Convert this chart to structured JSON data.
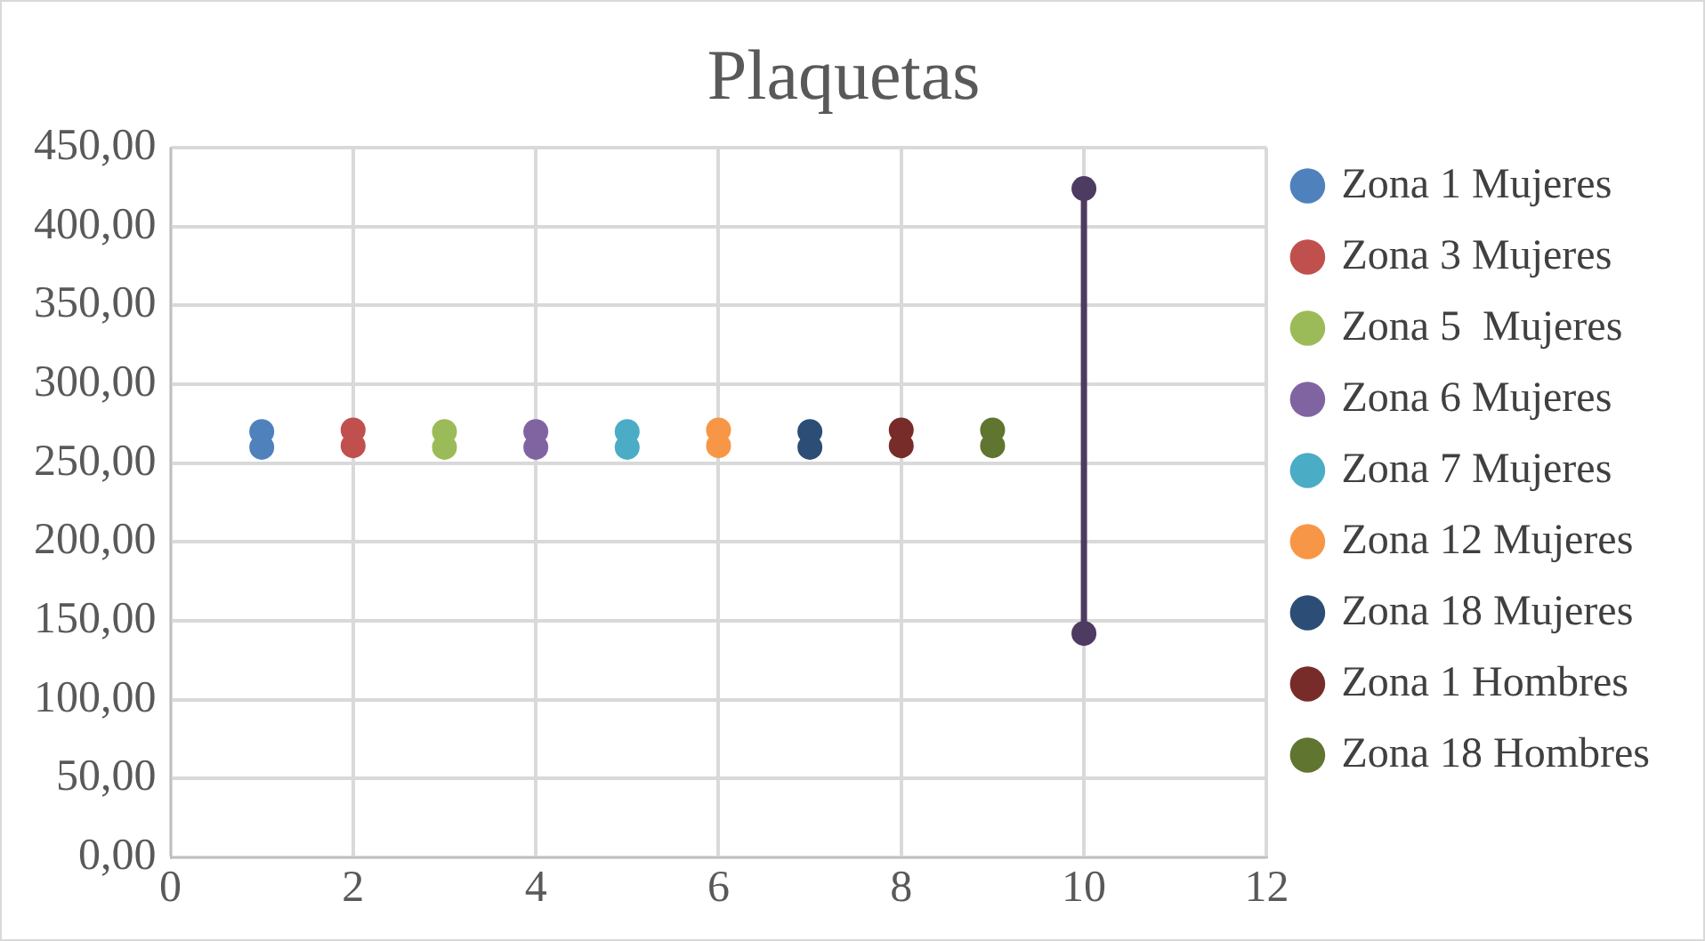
{
  "chart_data": {
    "type": "line",
    "title": "Plaquetas",
    "marker": "circle",
    "line_style": "solid",
    "grid": true,
    "legend": "right",
    "xlim": [
      0,
      12
    ],
    "xticks": [
      0,
      2,
      4,
      6,
      8,
      10,
      12
    ],
    "ylim": [
      0,
      450
    ],
    "yticks": [
      {
        "value": 0,
        "label": "0,00"
      },
      {
        "value": 50,
        "label": "50,00"
      },
      {
        "value": 100,
        "label": "100,00"
      },
      {
        "value": 150,
        "label": "150,00"
      },
      {
        "value": 200,
        "label": "200,00"
      },
      {
        "value": 250,
        "label": "250,00"
      },
      {
        "value": 300,
        "label": "300,00"
      },
      {
        "value": 350,
        "label": "350,00"
      },
      {
        "value": 400,
        "label": "400,00"
      },
      {
        "value": 450,
        "label": "450,00"
      }
    ],
    "series": [
      {
        "name": "Zona 1 Mujeres",
        "type": "scatter",
        "color": "#4f81bd",
        "x": [
          1,
          1
        ],
        "values": [
          260,
          270
        ]
      },
      {
        "name": "Zona 3 Mujeres",
        "type": "scatter",
        "color": "#c0504d",
        "x": [
          2,
          2
        ],
        "values": [
          261,
          271
        ]
      },
      {
        "name": "Zona 5  Mujeres",
        "type": "scatter",
        "color": "#9bbb59",
        "x": [
          3,
          3
        ],
        "values": [
          260,
          270
        ]
      },
      {
        "name": "Zona 6 Mujeres",
        "type": "scatter",
        "color": "#8064a2",
        "x": [
          4,
          4
        ],
        "values": [
          260,
          270
        ]
      },
      {
        "name": "Zona 7 Mujeres",
        "type": "scatter",
        "color": "#4bacc6",
        "x": [
          5,
          5
        ],
        "values": [
          260,
          270
        ]
      },
      {
        "name": "Zona 12 Mujeres",
        "type": "scatter",
        "color": "#f79646",
        "x": [
          6,
          6
        ],
        "values": [
          261,
          271
        ]
      },
      {
        "name": "Zona 18 Mujeres",
        "type": "scatter",
        "color": "#2c4d75",
        "x": [
          7,
          7
        ],
        "values": [
          260,
          270
        ]
      },
      {
        "name": "Zona 1 Hombres",
        "type": "scatter",
        "color": "#772c2a",
        "x": [
          8,
          8
        ],
        "values": [
          261,
          271
        ]
      },
      {
        "name": "Zona 18 Hombres",
        "type": "scatter",
        "color": "#5f7530",
        "x": [
          9,
          9
        ],
        "values": [
          261,
          271
        ]
      },
      {
        "color": "#4d3b62",
        "x": [
          10,
          10
        ],
        "values": [
          142,
          424
        ]
      }
    ]
  }
}
